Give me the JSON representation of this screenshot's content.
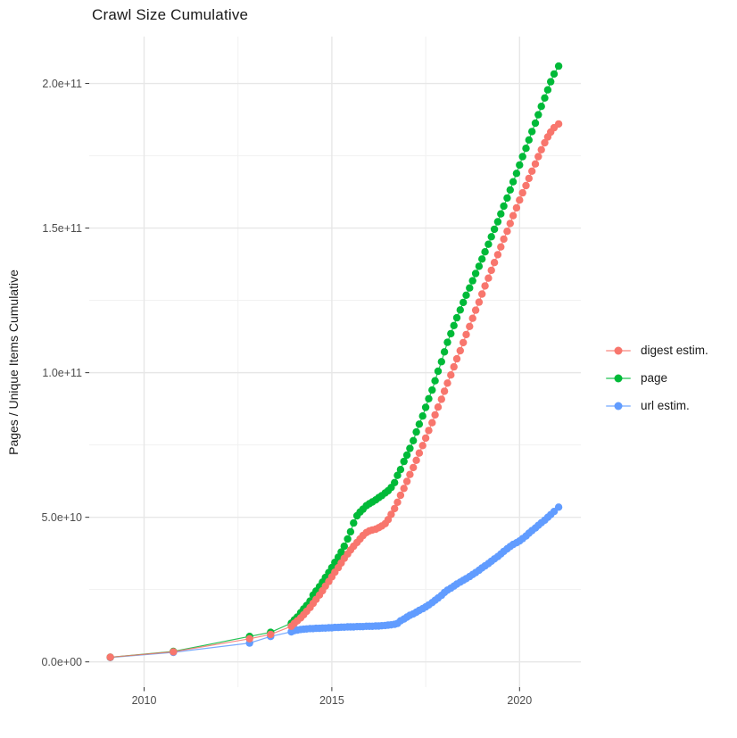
{
  "chart_data": {
    "type": "scatter",
    "title": "Crawl Size Cumulative",
    "xlabel": "",
    "ylabel": "Pages / Unique Items Cumulative",
    "value_unit": "values are in units of 1e10 pages",
    "xlim": [
      2008.5,
      2021.64
    ],
    "ylim_e10": [
      -0.9,
      21.6
    ],
    "grid": "on",
    "legend_position": "right",
    "x_ticks": [
      {
        "value": 2010,
        "label": "2010"
      },
      {
        "value": 2015,
        "label": "2015"
      },
      {
        "value": 2020,
        "label": "2020"
      }
    ],
    "x_minor_ticks": [
      2012.5,
      2017.5
    ],
    "y_ticks": [
      {
        "value": 0,
        "label": "0.0e+00"
      },
      {
        "value": 5,
        "label": "5.0e+10"
      },
      {
        "value": 10,
        "label": "1.0e+11"
      },
      {
        "value": 15,
        "label": "1.5e+11"
      },
      {
        "value": 20,
        "label": "2.0e+11"
      }
    ],
    "y_minor_ticks": [
      2.5,
      7.5,
      12.5,
      17.5
    ],
    "series": [
      {
        "name": "digest estim.",
        "color": "#F8766D",
        "points": [
          [
            2009.1,
            0.16
          ],
          [
            2010.78,
            0.35
          ],
          [
            2012.81,
            0.8
          ],
          [
            2013.37,
            0.95
          ],
          [
            2013.92,
            1.23
          ],
          [
            2014.0,
            1.33
          ],
          [
            2014.08,
            1.42
          ],
          [
            2014.17,
            1.52
          ],
          [
            2014.25,
            1.63
          ],
          [
            2014.33,
            1.75
          ],
          [
            2014.42,
            1.88
          ],
          [
            2014.5,
            2.02
          ],
          [
            2014.58,
            2.16
          ],
          [
            2014.67,
            2.31
          ],
          [
            2014.75,
            2.46
          ],
          [
            2014.83,
            2.62
          ],
          [
            2014.92,
            2.78
          ],
          [
            2015.0,
            2.94
          ],
          [
            2015.08,
            3.1
          ],
          [
            2015.17,
            3.26
          ],
          [
            2015.25,
            3.42
          ],
          [
            2015.33,
            3.58
          ],
          [
            2015.42,
            3.73
          ],
          [
            2015.5,
            3.87
          ],
          [
            2015.58,
            4.0
          ],
          [
            2015.67,
            4.13
          ],
          [
            2015.75,
            4.25
          ],
          [
            2015.83,
            4.37
          ],
          [
            2015.92,
            4.47
          ],
          [
            2016.0,
            4.53
          ],
          [
            2016.08,
            4.56
          ],
          [
            2016.17,
            4.59
          ],
          [
            2016.25,
            4.64
          ],
          [
            2016.33,
            4.7
          ],
          [
            2016.42,
            4.78
          ],
          [
            2016.5,
            4.92
          ],
          [
            2016.58,
            5.1
          ],
          [
            2016.67,
            5.3
          ],
          [
            2016.75,
            5.52
          ],
          [
            2016.83,
            5.76
          ],
          [
            2016.92,
            6.0
          ],
          [
            2017.0,
            6.24
          ],
          [
            2017.08,
            6.48
          ],
          [
            2017.17,
            6.72
          ],
          [
            2017.25,
            6.97
          ],
          [
            2017.33,
            7.22
          ],
          [
            2017.42,
            7.48
          ],
          [
            2017.5,
            7.74
          ],
          [
            2017.58,
            8.0
          ],
          [
            2017.67,
            8.27
          ],
          [
            2017.75,
            8.54
          ],
          [
            2017.83,
            8.81
          ],
          [
            2017.92,
            9.08
          ],
          [
            2018.0,
            9.36
          ],
          [
            2018.08,
            9.64
          ],
          [
            2018.17,
            9.92
          ],
          [
            2018.25,
            10.2
          ],
          [
            2018.33,
            10.48
          ],
          [
            2018.42,
            10.76
          ],
          [
            2018.5,
            11.04
          ],
          [
            2018.58,
            11.32
          ],
          [
            2018.67,
            11.6
          ],
          [
            2018.75,
            11.88
          ],
          [
            2018.83,
            12.16
          ],
          [
            2018.92,
            12.44
          ],
          [
            2019.0,
            12.72
          ],
          [
            2019.08,
            13.0
          ],
          [
            2019.17,
            13.27
          ],
          [
            2019.25,
            13.54
          ],
          [
            2019.33,
            13.81
          ],
          [
            2019.42,
            14.08
          ],
          [
            2019.5,
            14.35
          ],
          [
            2019.58,
            14.62
          ],
          [
            2019.67,
            14.89
          ],
          [
            2019.75,
            15.16
          ],
          [
            2019.83,
            15.43
          ],
          [
            2019.92,
            15.7
          ],
          [
            2020.0,
            15.97
          ],
          [
            2020.08,
            16.22
          ],
          [
            2020.17,
            16.47
          ],
          [
            2020.25,
            16.72
          ],
          [
            2020.33,
            16.97
          ],
          [
            2020.42,
            17.22
          ],
          [
            2020.5,
            17.47
          ],
          [
            2020.58,
            17.71
          ],
          [
            2020.67,
            17.95
          ],
          [
            2020.75,
            18.15
          ],
          [
            2020.83,
            18.32
          ],
          [
            2020.92,
            18.47
          ],
          [
            2021.04,
            18.6
          ]
        ]
      },
      {
        "name": "page",
        "color": "#00BA38",
        "points": [
          [
            2009.1,
            0.16
          ],
          [
            2010.78,
            0.36
          ],
          [
            2012.81,
            0.88
          ],
          [
            2013.37,
            1.02
          ],
          [
            2013.92,
            1.34
          ],
          [
            2014.0,
            1.45
          ],
          [
            2014.08,
            1.55
          ],
          [
            2014.17,
            1.7
          ],
          [
            2014.25,
            1.83
          ],
          [
            2014.33,
            1.95
          ],
          [
            2014.42,
            2.1
          ],
          [
            2014.5,
            2.31
          ],
          [
            2014.58,
            2.45
          ],
          [
            2014.67,
            2.6
          ],
          [
            2014.75,
            2.76
          ],
          [
            2014.83,
            2.92
          ],
          [
            2014.92,
            3.09
          ],
          [
            2015.0,
            3.26
          ],
          [
            2015.08,
            3.44
          ],
          [
            2015.17,
            3.62
          ],
          [
            2015.25,
            3.8
          ],
          [
            2015.33,
            4.0
          ],
          [
            2015.42,
            4.25
          ],
          [
            2015.5,
            4.5
          ],
          [
            2015.58,
            4.8
          ],
          [
            2015.67,
            5.05
          ],
          [
            2015.75,
            5.18
          ],
          [
            2015.83,
            5.28
          ],
          [
            2015.92,
            5.4
          ],
          [
            2016.0,
            5.47
          ],
          [
            2016.08,
            5.53
          ],
          [
            2016.17,
            5.6
          ],
          [
            2016.25,
            5.68
          ],
          [
            2016.33,
            5.75
          ],
          [
            2016.42,
            5.84
          ],
          [
            2016.5,
            5.92
          ],
          [
            2016.58,
            6.03
          ],
          [
            2016.67,
            6.2
          ],
          [
            2016.75,
            6.45
          ],
          [
            2016.83,
            6.65
          ],
          [
            2016.92,
            6.93
          ],
          [
            2017.0,
            7.15
          ],
          [
            2017.08,
            7.38
          ],
          [
            2017.17,
            7.65
          ],
          [
            2017.25,
            7.95
          ],
          [
            2017.33,
            8.22
          ],
          [
            2017.42,
            8.5
          ],
          [
            2017.5,
            8.8
          ],
          [
            2017.58,
            9.1
          ],
          [
            2017.67,
            9.4
          ],
          [
            2017.75,
            9.72
          ],
          [
            2017.83,
            10.05
          ],
          [
            2017.92,
            10.38
          ],
          [
            2018.0,
            10.72
          ],
          [
            2018.08,
            11.05
          ],
          [
            2018.17,
            11.35
          ],
          [
            2018.25,
            11.63
          ],
          [
            2018.33,
            11.9
          ],
          [
            2018.42,
            12.17
          ],
          [
            2018.5,
            12.43
          ],
          [
            2018.58,
            12.68
          ],
          [
            2018.67,
            12.93
          ],
          [
            2018.75,
            13.18
          ],
          [
            2018.83,
            13.43
          ],
          [
            2018.92,
            13.68
          ],
          [
            2019.0,
            13.93
          ],
          [
            2019.08,
            14.18
          ],
          [
            2019.17,
            14.44
          ],
          [
            2019.25,
            14.7
          ],
          [
            2019.33,
            14.96
          ],
          [
            2019.42,
            15.22
          ],
          [
            2019.5,
            15.49
          ],
          [
            2019.58,
            15.76
          ],
          [
            2019.67,
            16.04
          ],
          [
            2019.75,
            16.32
          ],
          [
            2019.83,
            16.6
          ],
          [
            2019.92,
            16.89
          ],
          [
            2020.0,
            17.18
          ],
          [
            2020.08,
            17.47
          ],
          [
            2020.17,
            17.76
          ],
          [
            2020.25,
            18.05
          ],
          [
            2020.33,
            18.34
          ],
          [
            2020.42,
            18.63
          ],
          [
            2020.5,
            18.92
          ],
          [
            2020.58,
            19.21
          ],
          [
            2020.67,
            19.5
          ],
          [
            2020.75,
            19.78
          ],
          [
            2020.83,
            20.06
          ],
          [
            2020.92,
            20.33
          ],
          [
            2021.04,
            20.6
          ]
        ]
      },
      {
        "name": "url estim.",
        "color": "#619CFF",
        "points": [
          [
            2009.1,
            0.15
          ],
          [
            2010.78,
            0.33
          ],
          [
            2012.81,
            0.65
          ],
          [
            2013.37,
            0.88
          ],
          [
            2013.92,
            1.04
          ],
          [
            2014.0,
            1.08
          ],
          [
            2014.08,
            1.1
          ],
          [
            2014.17,
            1.12
          ],
          [
            2014.25,
            1.13
          ],
          [
            2014.33,
            1.14
          ],
          [
            2014.42,
            1.15
          ],
          [
            2014.5,
            1.15
          ],
          [
            2014.58,
            1.16
          ],
          [
            2014.67,
            1.16
          ],
          [
            2014.75,
            1.17
          ],
          [
            2014.83,
            1.17
          ],
          [
            2014.92,
            1.18
          ],
          [
            2015.0,
            1.18
          ],
          [
            2015.08,
            1.19
          ],
          [
            2015.17,
            1.19
          ],
          [
            2015.25,
            1.2
          ],
          [
            2015.33,
            1.2
          ],
          [
            2015.42,
            1.21
          ],
          [
            2015.5,
            1.21
          ],
          [
            2015.58,
            1.21
          ],
          [
            2015.67,
            1.22
          ],
          [
            2015.75,
            1.22
          ],
          [
            2015.83,
            1.22
          ],
          [
            2015.92,
            1.23
          ],
          [
            2016.0,
            1.23
          ],
          [
            2016.08,
            1.23
          ],
          [
            2016.17,
            1.24
          ],
          [
            2016.25,
            1.24
          ],
          [
            2016.33,
            1.25
          ],
          [
            2016.42,
            1.26
          ],
          [
            2016.5,
            1.27
          ],
          [
            2016.58,
            1.28
          ],
          [
            2016.67,
            1.3
          ],
          [
            2016.75,
            1.33
          ],
          [
            2016.83,
            1.42
          ],
          [
            2016.92,
            1.48
          ],
          [
            2017.0,
            1.55
          ],
          [
            2017.08,
            1.61
          ],
          [
            2017.17,
            1.66
          ],
          [
            2017.25,
            1.72
          ],
          [
            2017.33,
            1.78
          ],
          [
            2017.42,
            1.84
          ],
          [
            2017.5,
            1.9
          ],
          [
            2017.58,
            1.97
          ],
          [
            2017.67,
            2.05
          ],
          [
            2017.75,
            2.13
          ],
          [
            2017.83,
            2.21
          ],
          [
            2017.92,
            2.3
          ],
          [
            2018.0,
            2.4
          ],
          [
            2018.08,
            2.48
          ],
          [
            2018.17,
            2.55
          ],
          [
            2018.25,
            2.62
          ],
          [
            2018.33,
            2.69
          ],
          [
            2018.42,
            2.76
          ],
          [
            2018.5,
            2.82
          ],
          [
            2018.58,
            2.88
          ],
          [
            2018.67,
            2.95
          ],
          [
            2018.75,
            3.02
          ],
          [
            2018.83,
            3.09
          ],
          [
            2018.92,
            3.17
          ],
          [
            2019.0,
            3.25
          ],
          [
            2019.08,
            3.32
          ],
          [
            2019.17,
            3.4
          ],
          [
            2019.25,
            3.48
          ],
          [
            2019.33,
            3.56
          ],
          [
            2019.42,
            3.64
          ],
          [
            2019.5,
            3.73
          ],
          [
            2019.58,
            3.82
          ],
          [
            2019.67,
            3.91
          ],
          [
            2019.75,
            3.99
          ],
          [
            2019.83,
            4.06
          ],
          [
            2019.92,
            4.12
          ],
          [
            2020.0,
            4.18
          ],
          [
            2020.08,
            4.26
          ],
          [
            2020.17,
            4.35
          ],
          [
            2020.25,
            4.45
          ],
          [
            2020.33,
            4.54
          ],
          [
            2020.42,
            4.63
          ],
          [
            2020.5,
            4.72
          ],
          [
            2020.58,
            4.81
          ],
          [
            2020.67,
            4.9
          ],
          [
            2020.75,
            5.0
          ],
          [
            2020.83,
            5.09
          ],
          [
            2020.92,
            5.2
          ],
          [
            2021.04,
            5.35
          ]
        ]
      }
    ]
  }
}
